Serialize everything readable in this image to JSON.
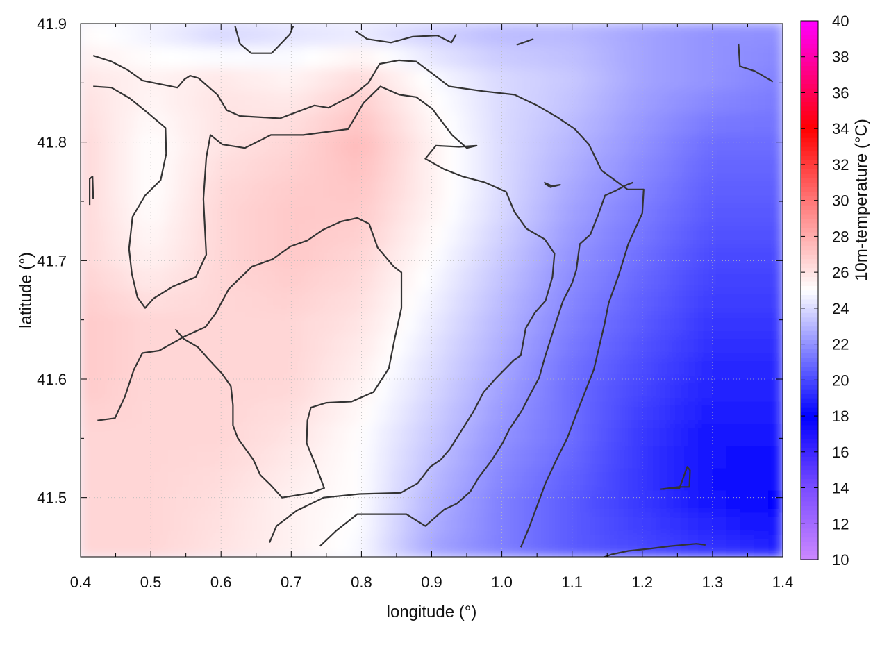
{
  "chart_data": {
    "type": "heatmap",
    "title": "",
    "xlabel": "longitude (°)",
    "ylabel": "latitude (°)",
    "colorbar_label": "10m-temperature (°C)",
    "xlim": [
      0.4,
      1.4
    ],
    "ylim": [
      41.45,
      41.9
    ],
    "x_ticks": [
      0.4,
      0.5,
      0.6,
      0.7,
      0.8,
      0.9,
      1.0,
      1.1,
      1.2,
      1.3,
      1.4
    ],
    "x_tick_labels": [
      "0.4",
      "0.5",
      "0.6",
      "0.7",
      "0.8",
      "0.9",
      "1.0",
      "1.1",
      "1.2",
      "1.3",
      "1.4"
    ],
    "y_ticks": [
      41.5,
      41.6,
      41.7,
      41.8,
      41.9
    ],
    "y_tick_labels": [
      "41.5",
      "41.6",
      "41.7",
      "41.8",
      "41.9"
    ],
    "colorbar_range": [
      10,
      40
    ],
    "colorbar_ticks": [
      10,
      12,
      14,
      16,
      18,
      20,
      22,
      24,
      26,
      28,
      30,
      32,
      34,
      36,
      38,
      40
    ],
    "colorbar_tick_labels": [
      "10",
      "12",
      "14",
      "16",
      "18",
      "20",
      "22",
      "24",
      "26",
      "28",
      "30",
      "32",
      "34",
      "36",
      "38",
      "40"
    ],
    "colormap_stops": [
      {
        "value": 10,
        "color": "#cc88ff"
      },
      {
        "value": 14,
        "color": "#7a4cff"
      },
      {
        "value": 18,
        "color": "#0000ff"
      },
      {
        "value": 25,
        "color": "#ffffff"
      },
      {
        "value": 30,
        "color": "#ff7777"
      },
      {
        "value": 34,
        "color": "#ff0000"
      },
      {
        "value": 40,
        "color": "#ff00ff"
      }
    ],
    "grid": true,
    "approx_temperature_field": {
      "lon": [
        0.4,
        0.5,
        0.6,
        0.7,
        0.8,
        0.9,
        1.0,
        1.1,
        1.2,
        1.3,
        1.4
      ],
      "lat": [
        41.45,
        41.5,
        41.55,
        41.6,
        41.65,
        41.7,
        41.75,
        41.8,
        41.85,
        41.9
      ],
      "values": [
        [
          26.5,
          26.5,
          26,
          25.5,
          24.8,
          22.5,
          21.5,
          20.5,
          20,
          19.5,
          19
        ],
        [
          26.5,
          26.5,
          26.2,
          25.5,
          25,
          23,
          21.5,
          20.5,
          19.5,
          18.5,
          18
        ],
        [
          26.5,
          26.5,
          26.5,
          26,
          25,
          23.5,
          22,
          21,
          19.5,
          18.5,
          18.5
        ],
        [
          27,
          26.5,
          26.5,
          26.5,
          25.5,
          24,
          22.5,
          21,
          20,
          19,
          19
        ],
        [
          27,
          26.5,
          26.5,
          26.5,
          26,
          24.5,
          23,
          21.5,
          20.5,
          19.5,
          19.5
        ],
        [
          26.5,
          25.5,
          26.5,
          27,
          26.5,
          25,
          23.5,
          22,
          21,
          20,
          20
        ],
        [
          26.5,
          25,
          26.5,
          27,
          27,
          25.5,
          24,
          22.5,
          21.5,
          20.5,
          20.5
        ],
        [
          26.5,
          25,
          26,
          26.5,
          27.5,
          25.5,
          24,
          23,
          22,
          21,
          21
        ],
        [
          26,
          25.5,
          26,
          25.5,
          26.5,
          25,
          24,
          23.5,
          22.5,
          22,
          21.5
        ],
        [
          25,
          24.5,
          23.5,
          24,
          24,
          23.5,
          23,
          23,
          22.5,
          22,
          22
        ]
      ]
    },
    "contour_lines": [
      [
        [
          0.418,
          41.873
        ],
        [
          0.444,
          41.868
        ],
        [
          0.467,
          41.861
        ],
        [
          0.488,
          41.852
        ],
        [
          0.538,
          41.846
        ],
        [
          0.548,
          41.853
        ],
        [
          0.556,
          41.856
        ],
        [
          0.568,
          41.854
        ],
        [
          0.595,
          41.84
        ],
        [
          0.608,
          41.827
        ],
        [
          0.627,
          41.822
        ],
        [
          0.684,
          41.82
        ],
        [
          0.733,
          41.831
        ],
        [
          0.753,
          41.829
        ],
        [
          0.789,
          41.84
        ],
        [
          0.81,
          41.85
        ],
        [
          0.826,
          41.866
        ],
        [
          0.853,
          41.869
        ],
        [
          0.878,
          41.868
        ],
        [
          0.905,
          41.856
        ],
        [
          0.925,
          41.847
        ],
        [
          0.973,
          41.843
        ],
        [
          1.018,
          41.84
        ],
        [
          1.05,
          41.831
        ],
        [
          1.079,
          41.821
        ],
        [
          1.104,
          41.811
        ],
        [
          1.124,
          41.798
        ],
        [
          1.142,
          41.776
        ],
        [
          1.179,
          41.76
        ],
        [
          1.202,
          41.76
        ],
        [
          1.2,
          41.74
        ],
        [
          1.18,
          41.714
        ],
        [
          1.166,
          41.687
        ],
        [
          1.152,
          41.664
        ],
        [
          1.146,
          41.646
        ],
        [
          1.131,
          41.608
        ],
        [
          1.107,
          41.572
        ],
        [
          1.093,
          41.55
        ],
        [
          1.077,
          41.531
        ],
        [
          1.062,
          41.512
        ],
        [
          1.052,
          41.496
        ],
        [
          1.039,
          41.475
        ],
        [
          1.027,
          41.458
        ]
      ],
      [
        [
          0.418,
          41.847
        ],
        [
          0.444,
          41.846
        ],
        [
          0.47,
          41.837
        ],
        [
          0.497,
          41.824
        ],
        [
          0.521,
          41.812
        ],
        [
          0.522,
          41.79
        ],
        [
          0.514,
          41.768
        ],
        [
          0.492,
          41.755
        ],
        [
          0.474,
          41.737
        ],
        [
          0.469,
          41.71
        ],
        [
          0.473,
          41.689
        ],
        [
          0.481,
          41.669
        ],
        [
          0.492,
          41.66
        ],
        [
          0.504,
          41.668
        ],
        [
          0.531,
          41.678
        ],
        [
          0.564,
          41.686
        ],
        [
          0.579,
          41.705
        ],
        [
          0.575,
          41.752
        ],
        [
          0.579,
          41.787
        ],
        [
          0.585,
          41.806
        ],
        [
          0.602,
          41.798
        ],
        [
          0.634,
          41.795
        ],
        [
          0.671,
          41.806
        ],
        [
          0.717,
          41.806
        ],
        [
          0.781,
          41.811
        ],
        [
          0.803,
          41.833
        ],
        [
          0.827,
          41.847
        ],
        [
          0.854,
          41.84
        ],
        [
          0.878,
          41.838
        ],
        [
          0.901,
          41.828
        ],
        [
          0.929,
          41.806
        ],
        [
          0.95,
          41.795
        ],
        [
          0.964,
          41.797
        ],
        [
          0.939,
          41.796
        ],
        [
          0.906,
          41.797
        ],
        [
          0.891,
          41.786
        ],
        [
          0.918,
          41.777
        ],
        [
          0.944,
          41.771
        ],
        [
          0.976,
          41.766
        ],
        [
          1.006,
          41.758
        ],
        [
          1.018,
          41.741
        ],
        [
          1.035,
          41.727
        ],
        [
          1.061,
          41.718
        ],
        [
          1.075,
          41.706
        ],
        [
          1.072,
          41.686
        ],
        [
          1.062,
          41.666
        ],
        [
          1.047,
          41.656
        ],
        [
          1.034,
          41.643
        ],
        [
          1.027,
          41.62
        ],
        [
          1.017,
          41.616
        ],
        [
          0.992,
          41.601
        ],
        [
          0.974,
          41.589
        ],
        [
          0.959,
          41.572
        ],
        [
          0.944,
          41.558
        ],
        [
          0.926,
          41.541
        ],
        [
          0.913,
          41.532
        ],
        [
          0.898,
          41.526
        ],
        [
          0.88,
          41.512
        ],
        [
          0.856,
          41.504
        ],
        [
          0.797,
          41.503
        ],
        [
          0.746,
          41.5
        ],
        [
          0.708,
          41.489
        ],
        [
          0.679,
          41.476
        ],
        [
          0.669,
          41.462
        ]
      ],
      [
        [
          0.424,
          41.565
        ],
        [
          0.449,
          41.567
        ],
        [
          0.463,
          41.585
        ],
        [
          0.476,
          41.608
        ],
        [
          0.488,
          41.622
        ],
        [
          0.512,
          41.624
        ],
        [
          0.548,
          41.636
        ],
        [
          0.578,
          41.644
        ],
        [
          0.593,
          41.656
        ],
        [
          0.611,
          41.676
        ],
        [
          0.644,
          41.695
        ],
        [
          0.673,
          41.701
        ],
        [
          0.699,
          41.712
        ],
        [
          0.723,
          41.717
        ],
        [
          0.745,
          41.726
        ],
        [
          0.771,
          41.733
        ],
        [
          0.794,
          41.736
        ],
        [
          0.811,
          41.731
        ],
        [
          0.823,
          41.711
        ],
        [
          0.846,
          41.695
        ],
        [
          0.857,
          41.69
        ],
        [
          0.857,
          41.66
        ],
        [
          0.847,
          41.633
        ],
        [
          0.839,
          41.609
        ],
        [
          0.817,
          41.589
        ],
        [
          0.786,
          41.581
        ],
        [
          0.75,
          41.58
        ],
        [
          0.728,
          41.576
        ],
        [
          0.723,
          41.565
        ],
        [
          0.722,
          41.546
        ],
        [
          0.737,
          41.524
        ],
        [
          0.747,
          41.508
        ],
        [
          0.729,
          41.504
        ],
        [
          0.687,
          41.5
        ],
        [
          0.67,
          41.511
        ],
        [
          0.656,
          41.519
        ],
        [
          0.646,
          41.532
        ],
        [
          0.624,
          41.55
        ],
        [
          0.617,
          41.561
        ],
        [
          0.617,
          41.578
        ],
        [
          0.614,
          41.594
        ],
        [
          0.601,
          41.605
        ],
        [
          0.582,
          41.617
        ],
        [
          0.567,
          41.627
        ],
        [
          0.547,
          41.634
        ],
        [
          0.535,
          41.642
        ]
      ],
      [
        [
          0.741,
          41.459
        ],
        [
          0.764,
          41.472
        ],
        [
          0.794,
          41.486
        ],
        [
          0.864,
          41.486
        ],
        [
          0.891,
          41.476
        ],
        [
          0.918,
          41.49
        ],
        [
          0.936,
          41.495
        ],
        [
          0.955,
          41.505
        ],
        [
          0.967,
          41.517
        ],
        [
          0.985,
          41.531
        ],
        [
          1.001,
          41.546
        ],
        [
          1.011,
          41.558
        ],
        [
          1.028,
          41.573
        ],
        [
          1.041,
          41.588
        ],
        [
          1.053,
          41.601
        ],
        [
          1.061,
          41.618
        ],
        [
          1.076,
          41.646
        ],
        [
          1.087,
          41.666
        ],
        [
          1.1,
          41.681
        ],
        [
          1.106,
          41.692
        ],
        [
          1.111,
          41.714
        ],
        [
          1.126,
          41.722
        ],
        [
          1.138,
          41.74
        ],
        [
          1.147,
          41.755
        ],
        [
          1.162,
          41.759
        ],
        [
          1.178,
          41.764
        ],
        [
          1.187,
          41.766
        ]
      ],
      [
        [
          1.142,
          41.449
        ],
        [
          1.156,
          41.452
        ],
        [
          1.18,
          41.455
        ],
        [
          1.212,
          41.457
        ],
        [
          1.24,
          41.459
        ],
        [
          1.277,
          41.461
        ],
        [
          1.29,
          41.46
        ]
      ],
      [
        [
          1.229,
          41.507
        ],
        [
          1.241,
          41.508
        ],
        [
          1.253,
          41.508
        ],
        [
          1.264,
          41.526
        ],
        [
          1.268,
          41.523
        ],
        [
          1.267,
          41.509
        ],
        [
          1.252,
          41.509
        ],
        [
          1.226,
          41.507
        ]
      ],
      [
        [
          1.06,
          41.766
        ],
        [
          1.071,
          41.763
        ],
        [
          1.083,
          41.764
        ],
        [
          1.069,
          41.762
        ],
        [
          1.061,
          41.765
        ]
      ],
      [
        [
          0.413,
          41.747
        ],
        [
          0.413,
          41.769
        ],
        [
          0.417,
          41.771
        ],
        [
          0.418,
          41.752
        ]
      ],
      [
        [
          1.337,
          41.883
        ],
        [
          1.339,
          41.864
        ],
        [
          1.36,
          41.86
        ],
        [
          1.386,
          41.851
        ]
      ],
      [
        [
          1.021,
          41.882
        ],
        [
          1.045,
          41.887
        ]
      ],
      [
        [
          0.62,
          41.898
        ],
        [
          0.627,
          41.883
        ],
        [
          0.643,
          41.875
        ],
        [
          0.672,
          41.875
        ],
        [
          0.682,
          41.881
        ],
        [
          0.698,
          41.891
        ],
        [
          0.703,
          41.898
        ]
      ],
      [
        [
          0.791,
          41.894
        ],
        [
          0.808,
          41.887
        ],
        [
          0.842,
          41.884
        ],
        [
          0.873,
          41.889
        ],
        [
          0.908,
          41.89
        ],
        [
          0.928,
          41.884
        ],
        [
          0.935,
          41.891
        ]
      ]
    ]
  }
}
